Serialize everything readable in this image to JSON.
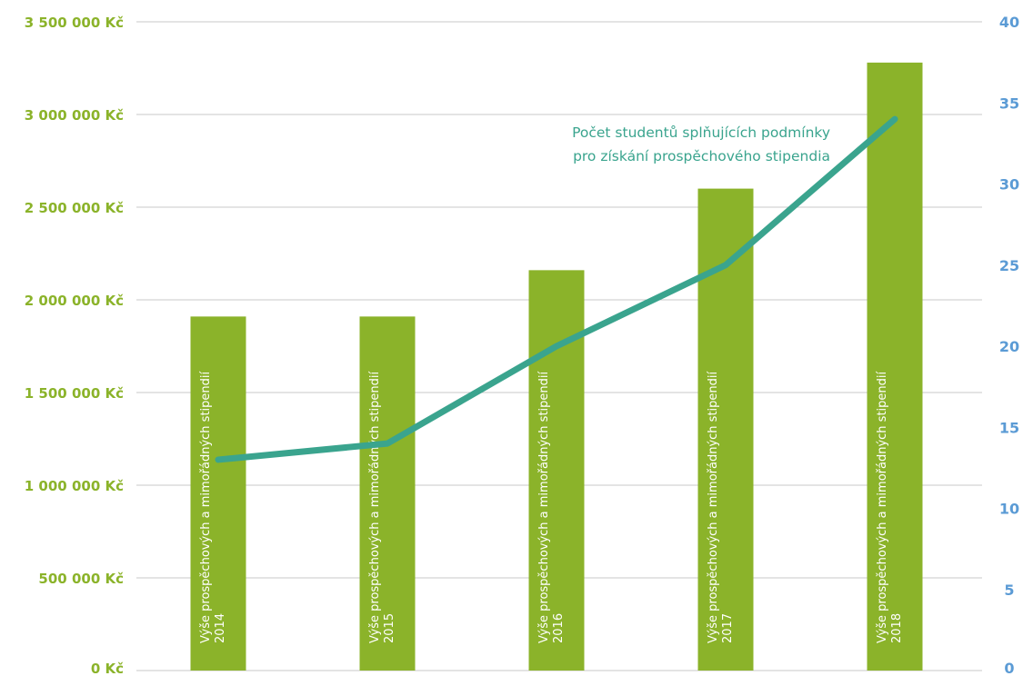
{
  "chart_data": {
    "type": "bar",
    "categories": [
      "2014",
      "2015",
      "2016",
      "2017",
      "2018"
    ],
    "bar_label_prefix": "Výše prospěchových a mimořádných stipendií",
    "series": [
      {
        "values": [
          1910000,
          1910000,
          2160000,
          2600000,
          3280000
        ],
        "color": "#8bb32a",
        "axis": "left",
        "type": "bar"
      },
      {
        "values": [
          13,
          14,
          20,
          25,
          34
        ],
        "color": "#3aa48e",
        "axis": "right",
        "type": "line"
      }
    ],
    "annotation": [
      "Počet studentů splňujících podmínky",
      "pro získání prospěchového stipendia"
    ],
    "y_left": {
      "ylim": [
        0,
        3500000
      ],
      "ticks": [
        "0 Kč",
        "500 000 Kč",
        "1 000 000 Kč",
        "1 500 000 Kč",
        "2 000 000 Kč",
        "2 500 000 Kč",
        "3 000 000 Kč",
        "3 500 000 Kč"
      ]
    },
    "y_right": {
      "ylim": [
        0,
        40
      ],
      "ticks": [
        "0",
        "5",
        "10",
        "15",
        "20",
        "25",
        "30",
        "35",
        "40"
      ]
    },
    "grid": true,
    "colors": {
      "bar": "#8bb32a",
      "line": "#3aa48e",
      "left_axis": "#8bb32a",
      "right_axis": "#5b9bd5",
      "grid": "#c8c8c8"
    }
  }
}
